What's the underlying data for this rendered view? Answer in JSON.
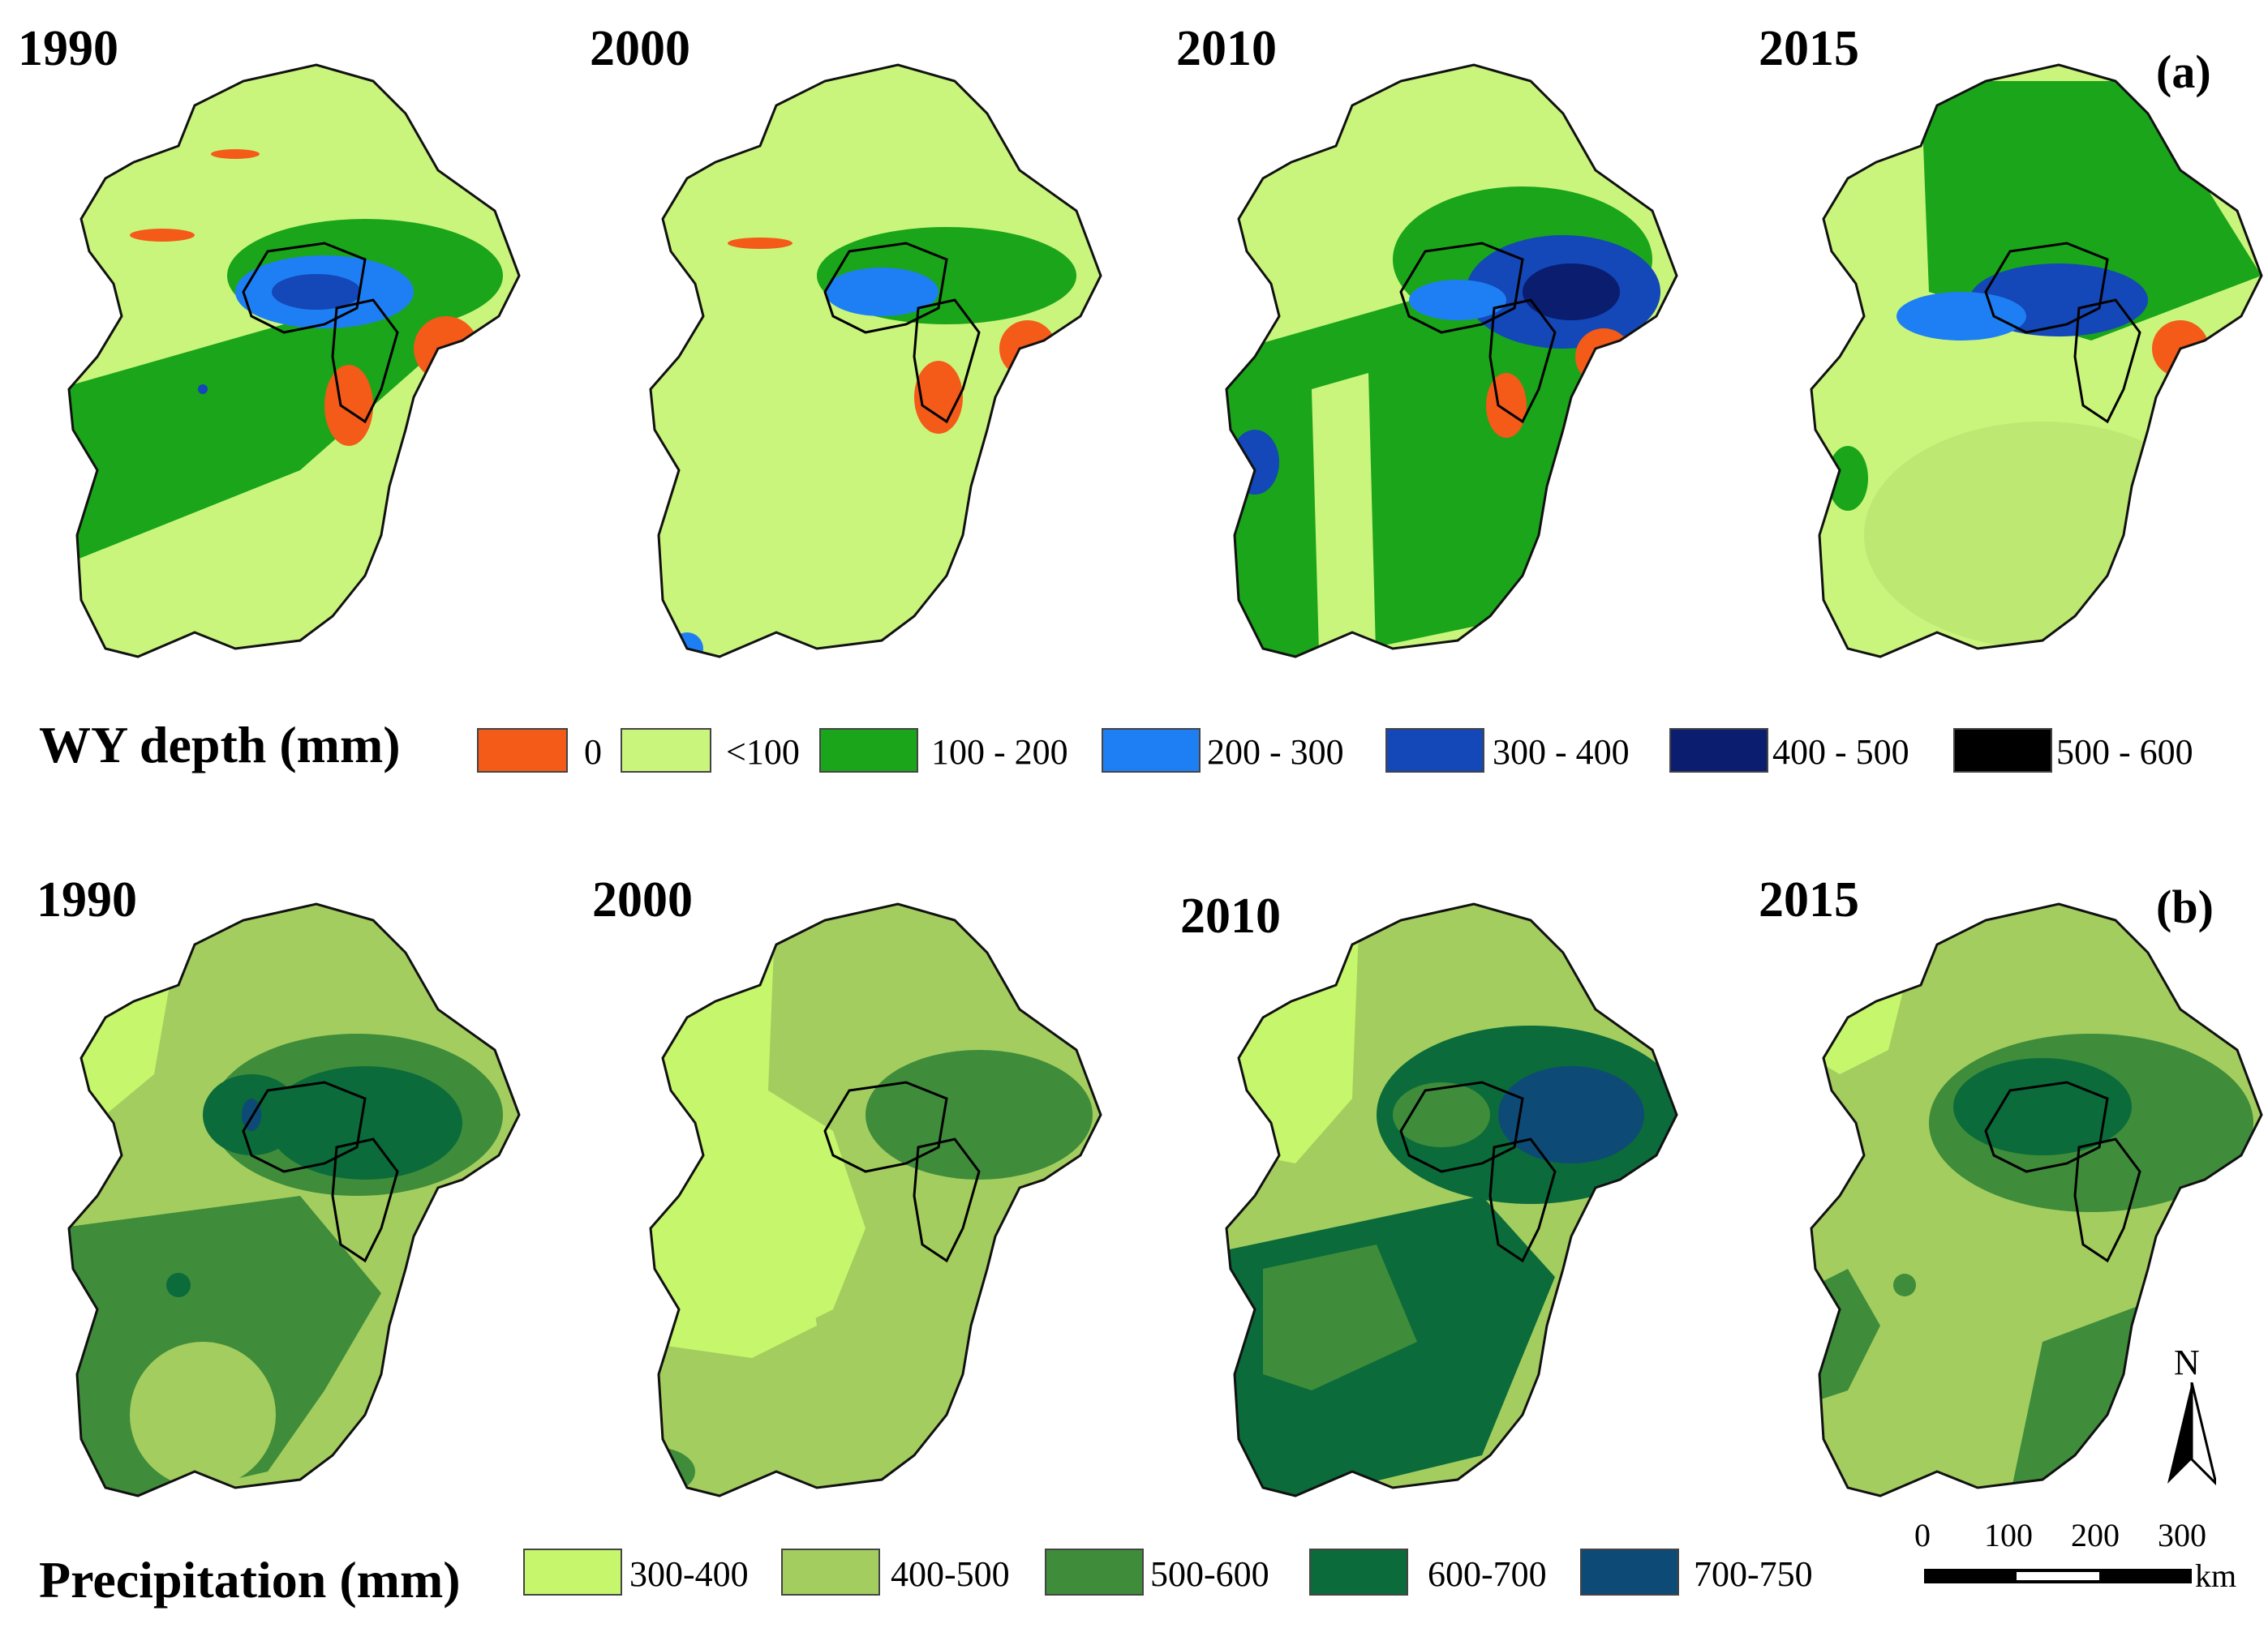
{
  "panel_a": {
    "tag": "(a)",
    "years": [
      "1990",
      "2000",
      "2010",
      "2015"
    ],
    "legend_title": "WY depth (mm)",
    "legend": [
      {
        "label": "0",
        "color": "#f45a18"
      },
      {
        "label": "<100",
        "color": "#c9f57c"
      },
      {
        "label": "100 - 200",
        "color": "#1aa51a"
      },
      {
        "label": "200 - 300",
        "color": "#1e7ff5"
      },
      {
        "label": "300 - 400",
        "color": "#1447b7"
      },
      {
        "label": "400 - 500",
        "color": "#0a1d6e"
      },
      {
        "label": "500 - 600",
        "color": "#000000"
      }
    ]
  },
  "panel_b": {
    "tag": "(b)",
    "years": [
      "1990",
      "2000",
      "2010",
      "2015"
    ],
    "legend_title": "Precipitation (mm)",
    "legend": [
      {
        "label": "300-400",
        "color": "#c5f66c"
      },
      {
        "label": "400-500",
        "color": "#a3cd5f"
      },
      {
        "label": "500-600",
        "color": "#3f8c3b"
      },
      {
        "label": "600-700",
        "color": "#0b6b3a"
      },
      {
        "label": "700-750",
        "color": "#0d4a76"
      }
    ]
  },
  "north_arrow": {
    "label": "N"
  },
  "scale_bar": {
    "ticks": [
      "0",
      "100",
      "200",
      "300"
    ],
    "unit": "km"
  }
}
